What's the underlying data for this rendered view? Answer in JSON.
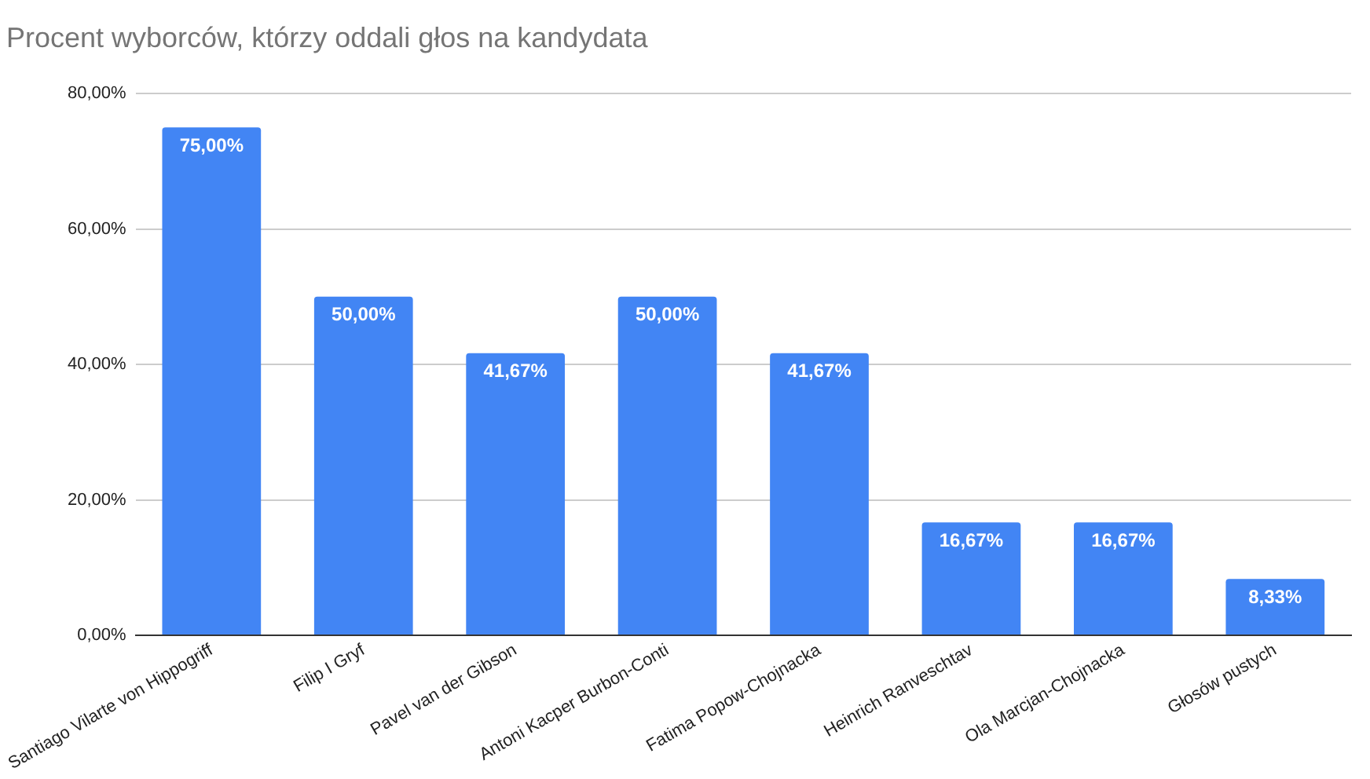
{
  "chart_data": {
    "type": "bar",
    "title": "Procent wyborców, którzy oddali głos na kandydata",
    "categories": [
      "Santiago Vilarte von Hippogriff",
      "Filip I Gryf",
      "Pavel van der Gibson",
      "Antoni Kacper Burbon-Conti",
      "Fatima Popow-Chojnacka",
      "Heinrich Ranveschtav",
      "Ola Marcjan-Chojnacka",
      "Głosów pustych"
    ],
    "values": [
      75,
      50,
      41.67,
      50,
      41.67,
      16.67,
      16.67,
      8.33
    ],
    "value_labels": [
      "75,00%",
      "50,00%",
      "41,67%",
      "50,00%",
      "41,67%",
      "16,67%",
      "16,67%",
      "8,33%"
    ],
    "color": "#4285f4",
    "ylim": [
      0,
      80
    ],
    "yticks": [
      {
        "value": 0,
        "label": "0,00%"
      },
      {
        "value": 20,
        "label": "20,00%"
      },
      {
        "value": 40,
        "label": "40,00%"
      },
      {
        "value": 60,
        "label": "60,00%"
      },
      {
        "value": 80,
        "label": "80,00%"
      }
    ],
    "grid": "y",
    "legend": false
  }
}
